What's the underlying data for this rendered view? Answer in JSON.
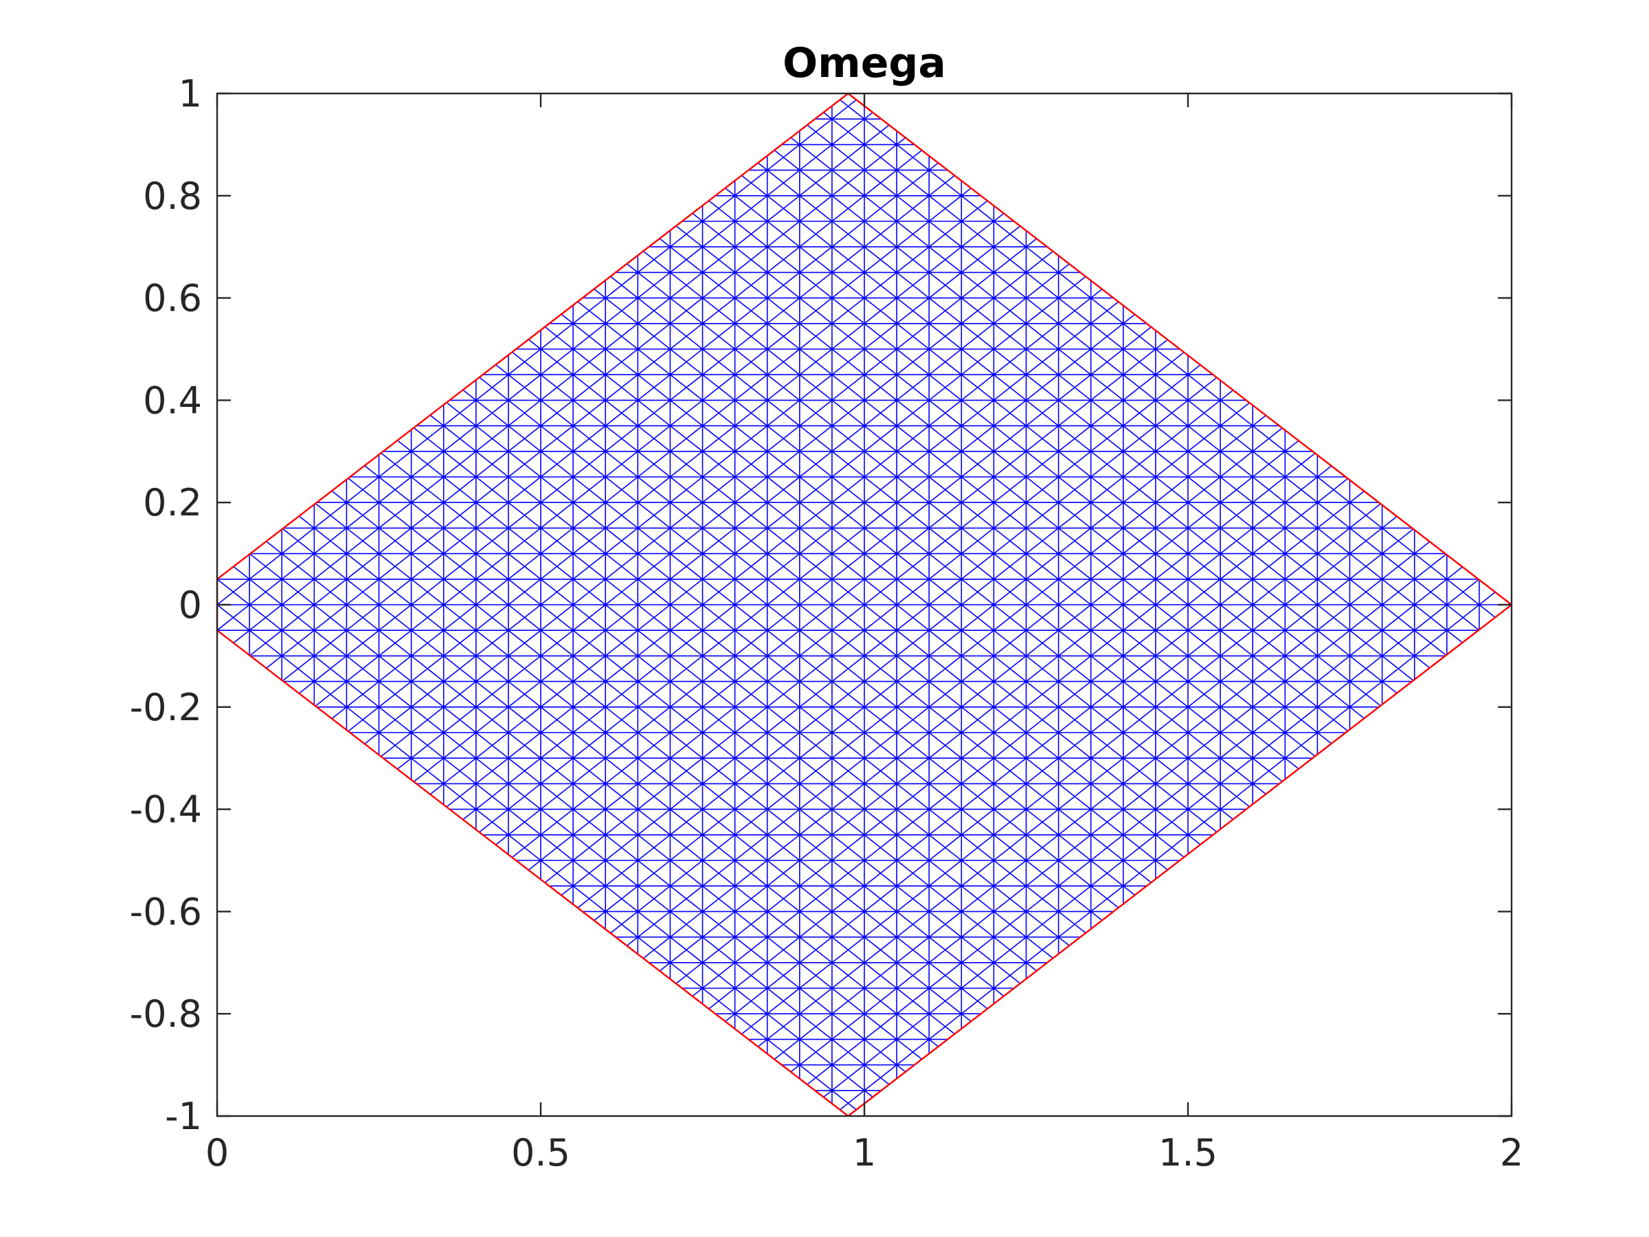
{
  "chart_data": {
    "type": "line",
    "title": "Omega",
    "xlabel": "",
    "ylabel": "",
    "xlim": [
      0,
      2
    ],
    "ylim": [
      -1,
      1
    ],
    "x_ticks": [
      0,
      0.5,
      1,
      1.5,
      2
    ],
    "x_tick_labels": [
      "0",
      "0.5",
      "1",
      "1.5",
      "2"
    ],
    "y_ticks": [
      -1,
      -0.8,
      -0.6,
      -0.4,
      -0.2,
      0,
      0.2,
      0.4,
      0.6,
      0.8,
      1
    ],
    "y_tick_labels": [
      "-1",
      "-0.8",
      "-0.6",
      "-0.4",
      "-0.2",
      "0",
      "0.2",
      "0.4",
      "0.6",
      "0.8",
      "1"
    ],
    "grid": false,
    "series": [
      {
        "role": "boundary",
        "color": "#ff0000",
        "x": [
          0,
          0.975,
          2,
          0.975,
          0,
          0
        ],
        "y": [
          0.05,
          1,
          0,
          -1,
          -0.05,
          0.05
        ]
      },
      {
        "role": "triangular-mesh",
        "color": "#0000ff",
        "cell_size": 0.05,
        "pattern": "union-jack"
      }
    ]
  }
}
